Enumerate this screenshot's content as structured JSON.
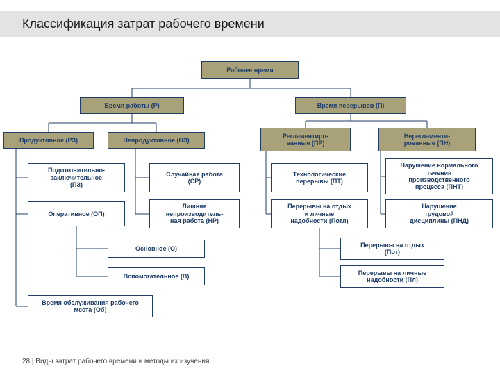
{
  "title": "Классификация затрат рабочего времени",
  "footer_page": "28",
  "footer_sep": "|",
  "footer_text": "Виды затрат рабочего времени и методы их изучения",
  "colors": {
    "fill": "#a9a17a",
    "border": "#1f3d66",
    "text_dark": "#1f3d66",
    "band": "#e3e3e3",
    "line": "#1f3d66"
  },
  "style": {
    "node_border_width": 1,
    "font_size_node": 9,
    "font_size_title": 18,
    "font_size_footer": 10
  },
  "nodes": {
    "root": {
      "label": "Рабочее время"
    },
    "r": {
      "label": "Время работы (Р)"
    },
    "p": {
      "label": "Время перерывов (П)"
    },
    "rz": {
      "label": "Продуктивное (РЗ)"
    },
    "nz": {
      "label": "Непродуктивное (НЗ)"
    },
    "pr": {
      "label": "Регламентиро-\nванные (ПР)"
    },
    "pn": {
      "label": "Нерегламенти-\nрованные (ПН)"
    },
    "pz": {
      "label": "Подготовительно-\nзаключительное\n(ПЗ)"
    },
    "sr": {
      "label": "Случайная работа\n(СР)"
    },
    "pt": {
      "label": "Технологические\nперерывы (ПТ)"
    },
    "pnt": {
      "label": "Нарушение нормального\nтечения\nпроизводственного\nпроцесса (ПНТ)"
    },
    "op": {
      "label": "Оперативное (ОП)"
    },
    "np": {
      "label": "Лишняя\nнепроизводитель-\nная работа (НР)"
    },
    "potl": {
      "label": "Перерывы на отдых\nи личные\nнадобности (Потл)"
    },
    "pnd": {
      "label": "Нарушение\nтрудовой\nдисциплины (ПНД)"
    },
    "o": {
      "label": "Основное (О)"
    },
    "pot": {
      "label": "Перерывы на отдых\n(Пот)"
    },
    "v": {
      "label": "Вспомогательное (В)"
    },
    "pl": {
      "label": "Перерывы на личные\nнадобности (Пл)"
    },
    "ob": {
      "label": "Время обслуживания рабочего\nместа (Об)"
    }
  }
}
